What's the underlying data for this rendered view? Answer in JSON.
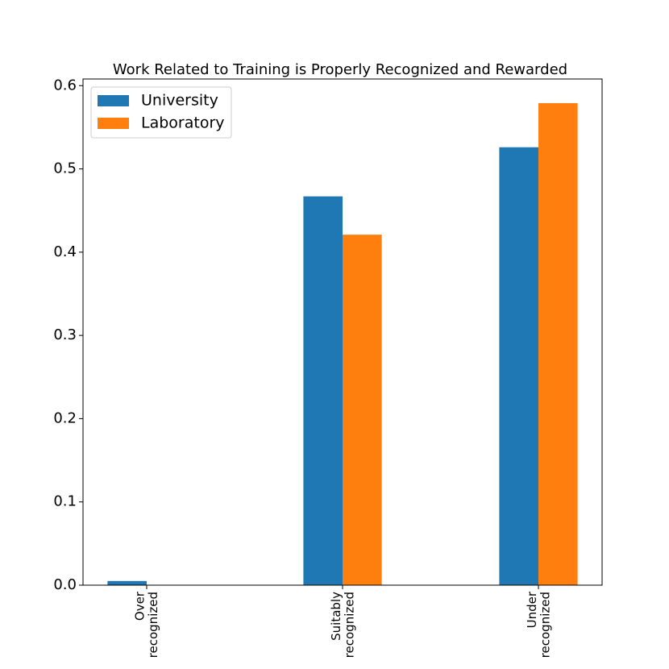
{
  "chart_data": {
    "type": "bar",
    "title": "Work Related to Training is Properly Recognized and Rewarded",
    "categories": [
      "Over\nrecognized",
      "Suitably\nrecognized",
      "Under\nrecognized"
    ],
    "series": [
      {
        "name": "University",
        "color": "#1f77b4",
        "values": [
          0.005,
          0.467,
          0.526
        ]
      },
      {
        "name": "Laboratory",
        "color": "#ff7f0e",
        "values": [
          0,
          0.421,
          0.579
        ]
      }
    ],
    "ylim": [
      0,
      0.608
    ],
    "yticks": [
      0.0,
      0.1,
      0.2,
      0.3,
      0.4,
      0.5,
      0.6
    ],
    "legend": "upper left"
  }
}
